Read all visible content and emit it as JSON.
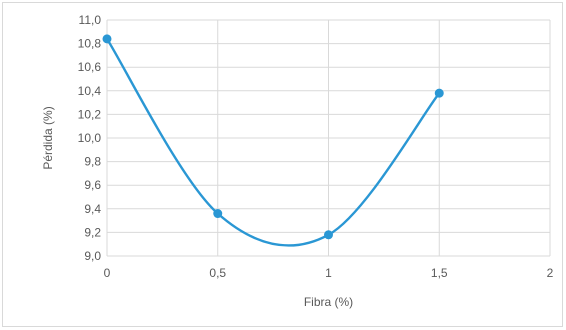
{
  "chart_data": {
    "type": "line",
    "title": "",
    "xlabel": "Fibra (%)",
    "ylabel": "Pérdida (%)",
    "x": [
      0,
      0.5,
      1,
      1.5
    ],
    "series": [
      {
        "values": [
          10.84,
          9.36,
          9.18,
          10.38
        ],
        "color": "#2a97d4"
      }
    ],
    "xlim": [
      0,
      2
    ],
    "ylim": [
      9.0,
      11.0
    ],
    "xticks": [
      "0",
      "0,5",
      "1",
      "1,5",
      "2"
    ],
    "yticks": [
      "9,0",
      "9,2",
      "9,4",
      "9,6",
      "9,8",
      "10,0",
      "10,2",
      "10,4",
      "10,6",
      "10,8",
      "11,0"
    ],
    "grid": true,
    "smooth": true,
    "markers": true
  }
}
